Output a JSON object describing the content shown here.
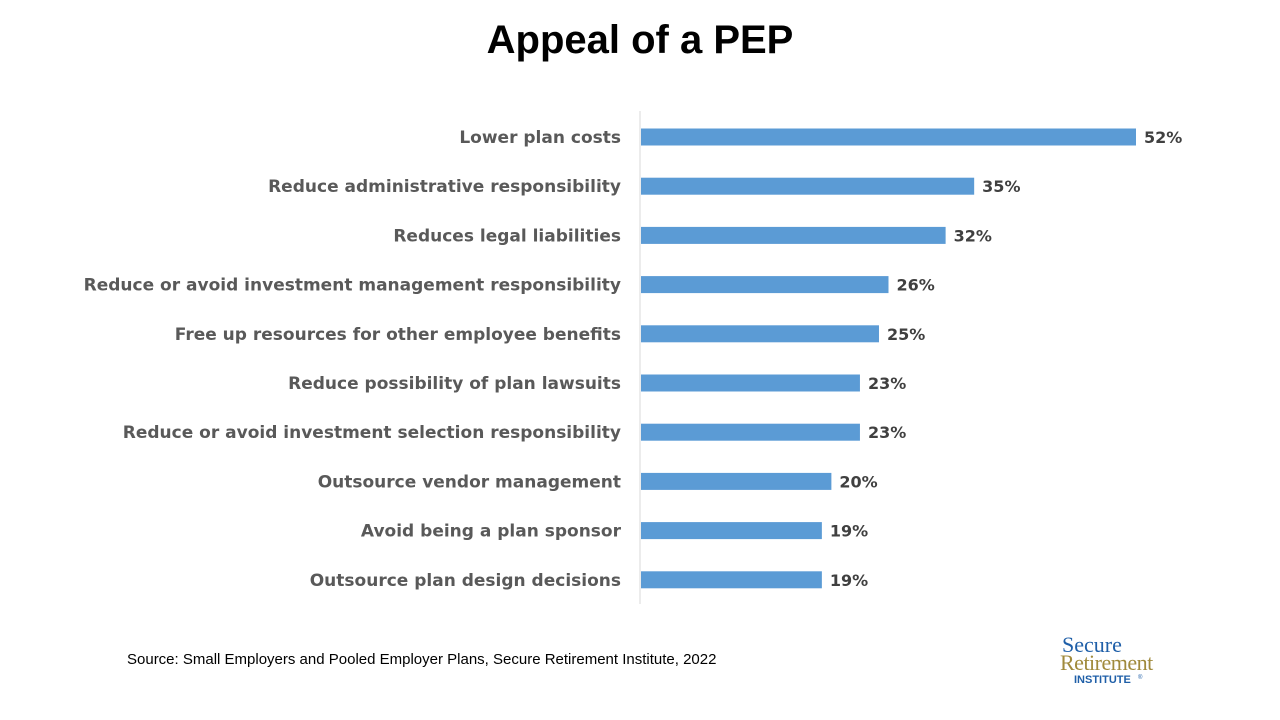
{
  "slide": {
    "title": "Appeal of a PEP",
    "source": "Source: Small Employers and Pooled Employer Plans, Secure Retirement Institute,  2022",
    "logo": {
      "line1": "Secure",
      "line2": "Retirement",
      "line3": "INSTITUTE",
      "mark": "®"
    }
  },
  "colors": {
    "bar": "#5b9bd5",
    "axis": "#d9d9d9",
    "logo_blue": "#1f5fa8",
    "logo_gold": "#a08a3c"
  },
  "chart_data": {
    "type": "bar",
    "orientation": "horizontal",
    "title": "Appeal of a PEP",
    "xlabel": "",
    "ylabel": "",
    "grid": false,
    "legend": "none",
    "xlim": [
      0,
      60
    ],
    "value_format": "percent",
    "categories": [
      "Lower plan costs",
      "Reduce administrative responsibility",
      "Reduces legal liabilities",
      "Reduce or avoid investment management responsibility",
      "Free up resources for other employee benefits",
      "Reduce possibility of plan lawsuits",
      "Reduce or avoid investment selection responsibility",
      "Outsource vendor management",
      "Avoid being a plan sponsor",
      "Outsource plan design decisions"
    ],
    "values": [
      52,
      35,
      32,
      26,
      25,
      23,
      23,
      20,
      19,
      19
    ],
    "data_labels": [
      "52%",
      "35%",
      "32%",
      "26%",
      "25%",
      "23%",
      "23%",
      "20%",
      "19%",
      "19%"
    ]
  }
}
